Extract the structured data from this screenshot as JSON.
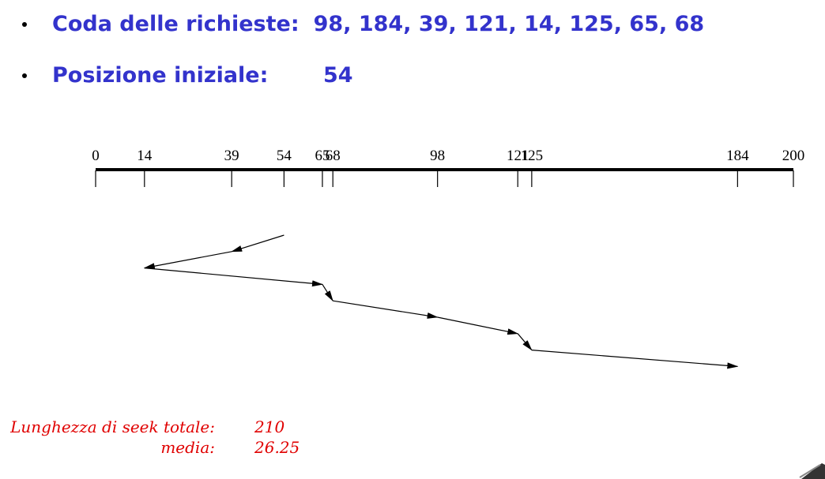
{
  "queue": {
    "label": "Coda delle richieste:",
    "values": "98, 184, 39, 121, 14, 125, 65, 68"
  },
  "start": {
    "label": "Posizione iniziale:",
    "value": "54"
  },
  "axis": {
    "min": 0,
    "max": 200,
    "ticks": [
      0,
      14,
      39,
      54,
      65,
      68,
      98,
      121,
      125,
      184,
      200
    ]
  },
  "seek_path": [
    54,
    39,
    14,
    65,
    68,
    98,
    121,
    125,
    184
  ],
  "stats": {
    "total_label": "Lunghezza di seek totale:",
    "total_value": "210",
    "avg_label": "media:",
    "avg_value": "26.25"
  }
}
